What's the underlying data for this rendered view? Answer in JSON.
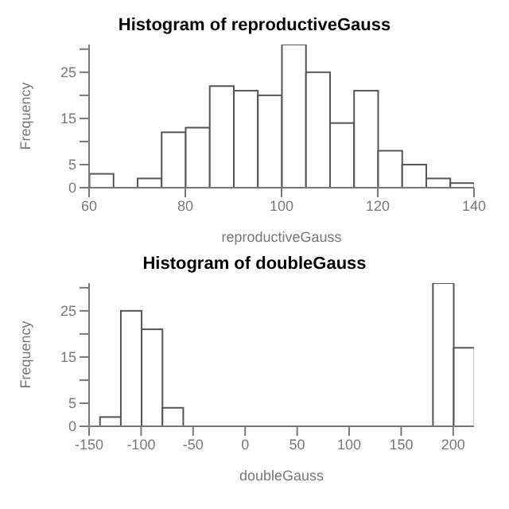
{
  "chart_data": [
    {
      "type": "histogram",
      "title": "Histogram of reproductiveGauss",
      "xlabel": "reproductiveGauss",
      "ylabel": "Frequency",
      "color": "#ffffff",
      "bins": [
        60,
        65,
        70,
        75,
        80,
        85,
        90,
        95,
        100,
        105,
        110,
        115,
        120,
        125,
        130,
        135,
        140
      ],
      "values": [
        3,
        0,
        2,
        12,
        13,
        22,
        21,
        20,
        31,
        25,
        14,
        21,
        8,
        5,
        2,
        1
      ],
      "xlim": [
        60,
        140
      ],
      "xticks": [
        60,
        80,
        100,
        120,
        140
      ],
      "ylim": [
        0,
        31
      ],
      "yticks": [
        0,
        5,
        {
          "value": 10,
          "label": null
        },
        15,
        {
          "value": 20,
          "label": null
        },
        25,
        {
          "value": 30,
          "label": null
        }
      ],
      "grid": false
    },
    {
      "type": "histogram",
      "title": "Histogram of doubleGauss",
      "xlabel": "doubleGauss",
      "ylabel": "Frequency",
      "color": "#ffffff",
      "bins": [
        -140,
        -120,
        -100,
        -80,
        -60,
        -40,
        -20,
        0,
        20,
        40,
        60,
        80,
        100,
        120,
        140,
        160,
        180,
        200,
        220
      ],
      "values": [
        2,
        25,
        21,
        4,
        0,
        0,
        0,
        0,
        0,
        0,
        0,
        0,
        0,
        0,
        0,
        0,
        31,
        17
      ],
      "xlim": [
        -150,
        220
      ],
      "xticks": [
        -150,
        -100,
        -50,
        0,
        50,
        100,
        150,
        200
      ],
      "ylim": [
        0,
        31
      ],
      "yticks": [
        0,
        5,
        {
          "value": 10,
          "label": null
        },
        15,
        {
          "value": 20,
          "label": null
        },
        25,
        {
          "value": 30,
          "label": null
        }
      ],
      "grid": false
    }
  ]
}
